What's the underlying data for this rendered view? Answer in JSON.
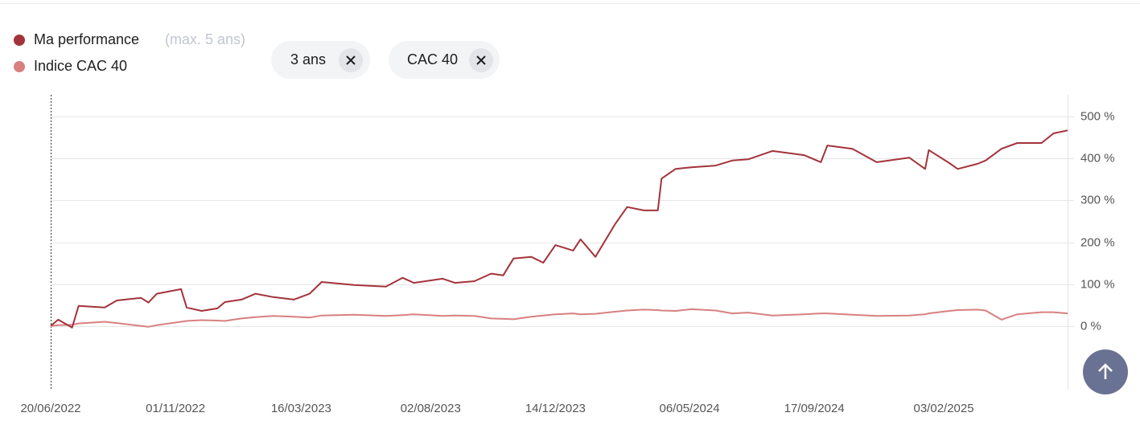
{
  "chart_data": {
    "type": "line",
    "legend_note": "(max. 5 ans)",
    "filters": [
      "3 ans",
      "CAC 40"
    ],
    "x": [
      "20/06/2022",
      "28/06/2022",
      "13/07/2022",
      "20/07/2022",
      "17/08/2022",
      "30/08/2022",
      "25/09/2022",
      "03/10/2022",
      "12/10/2022",
      "07/11/2022",
      "13/11/2022",
      "29/11/2022",
      "16/12/2022",
      "24/12/2022",
      "11/01/2023",
      "26/01/2023",
      "14/02/2023",
      "08/03/2023",
      "25/03/2023",
      "07/04/2023",
      "12/05/2023",
      "15/06/2023",
      "03/07/2023",
      "15/07/2023",
      "15/08/2023",
      "28/08/2023",
      "18/09/2023",
      "06/10/2023",
      "19/10/2023",
      "30/10/2023",
      "18/11/2023",
      "01/12/2023",
      "14/12/2023",
      "02/01/2024",
      "10/01/2024",
      "26/01/2024",
      "16/02/2024",
      "29/02/2024",
      "18/03/2024",
      "02/04/2024",
      "06/04/2024",
      "21/04/2024",
      "08/05/2024",
      "03/06/2024",
      "21/06/2024",
      "08/07/2024",
      "03/08/2024",
      "06/09/2024",
      "24/09/2024",
      "01/10/2024",
      "28/10/2024",
      "23/11/2024",
      "28/12/2024",
      "14/01/2025",
      "18/01/2025",
      "09/02/2025",
      "18/02/2025",
      "11/03/2025",
      "20/03/2025",
      "06/04/2025",
      "23/04/2025",
      "19/05/2025",
      "01/06/2025",
      "16/06/2025"
    ],
    "series": [
      {
        "name": "Ma performance",
        "color": "#a3333a",
        "values": [
          0,
          15,
          -4,
          48,
          44,
          61,
          67,
          56,
          77,
          88,
          44,
          36,
          42,
          57,
          63,
          77,
          69,
          63,
          77,
          105,
          98,
          94,
          115,
          103,
          113,
          103,
          107,
          125,
          121,
          161,
          165,
          151,
          193,
          180,
          207,
          165,
          243,
          284,
          276,
          276,
          352,
          375,
          379,
          383,
          395,
          398,
          418,
          408,
          391,
          431,
          423,
          391,
          402,
          375,
          420,
          389,
          375,
          387,
          395,
          423,
          437,
          437,
          460,
          467
        ]
      },
      {
        "name": "Indice CAC 40",
        "color": "#d88080",
        "values": [
          0,
          2,
          3,
          6,
          10,
          7,
          0,
          -2,
          2,
          10,
          12,
          14,
          13,
          12,
          18,
          21,
          24,
          22,
          20,
          25,
          27,
          24,
          26,
          28,
          24,
          25,
          24,
          18,
          17,
          16,
          22,
          25,
          28,
          30,
          28,
          29,
          34,
          37,
          39,
          38,
          37,
          36,
          40,
          37,
          30,
          32,
          25,
          28,
          30,
          30,
          27,
          24,
          25,
          28,
          30,
          36,
          38,
          39,
          37,
          15,
          28,
          33,
          33,
          30
        ]
      }
    ],
    "xlim": [
      "20/06/2022",
      "16/06/2025"
    ],
    "xticks": [
      "20/06/2022",
      "01/11/2022",
      "16/03/2023",
      "02/08/2023",
      "14/12/2023",
      "06/05/2024",
      "17/09/2024",
      "03/02/2025"
    ],
    "ylim": [
      -152,
      552
    ],
    "yticks": [
      {
        "value": 0,
        "label": "0 %"
      },
      {
        "value": 100,
        "label": "100 %"
      },
      {
        "value": 200,
        "label": "200 %"
      },
      {
        "value": 300,
        "label": "300 %"
      },
      {
        "value": 400,
        "label": "400 %"
      },
      {
        "value": 500,
        "label": "500 %"
      }
    ],
    "grid": true
  }
}
